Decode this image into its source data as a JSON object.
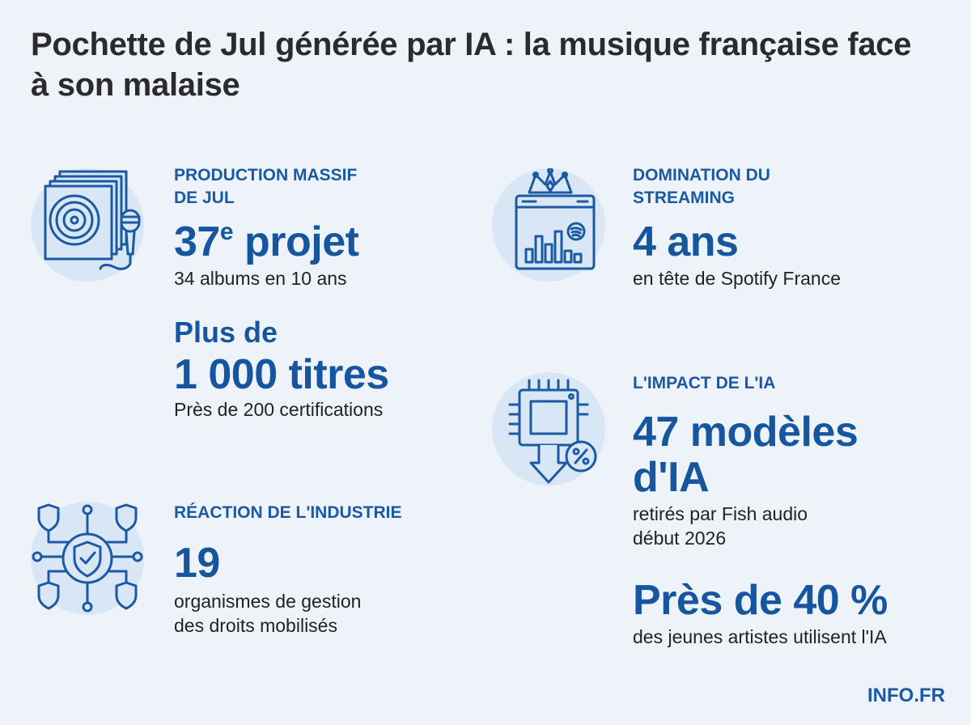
{
  "title": "Pochette de Jul générée par IA : la musique française face à son malaise",
  "production": {
    "heading_line1": "PRODUCTION MASSIF",
    "heading_line2": "DE JUL",
    "stat1_number": "37",
    "stat1_sup": "e",
    "stat1_word": " projet",
    "stat1_desc": "34 albums en 10 ans",
    "stat2_prefix": "Plus de",
    "stat2_value": "1 000 titres",
    "stat2_desc": "Près de 200 certifications"
  },
  "streaming": {
    "heading_line1": "DOMINATION DU",
    "heading_line2": "STREAMING",
    "stat_value": "4 ans",
    "stat_desc": "en tête de Spotify France"
  },
  "ia": {
    "heading": "L'IMPACT DE L'IA",
    "stat1_line1": "47 modèles",
    "stat1_line2": "d'IA",
    "stat1_desc_line1": "retirés par Fish audio",
    "stat1_desc_line2": "début 2026",
    "stat2_value": "Près de 40 %",
    "stat2_desc": "des jeunes artistes utilisent l'IA"
  },
  "industrie": {
    "heading": "RÉACTION DE L'INDUSTRIE",
    "stat_value": "19",
    "stat_desc_line1": "organismes de gestion",
    "stat_desc_line2": "des droits mobilisés"
  },
  "brand": "INFO.FR",
  "colors": {
    "background": "#eef3f9",
    "accent": "#16569f",
    "icon_circle": "#d8e6f5",
    "title": "#2b2b2b"
  },
  "icons": [
    "vinyl-records-microphone-icon",
    "crown-streaming-chart-icon",
    "ai-chip-down-arrow-icon",
    "shield-network-icon"
  ]
}
